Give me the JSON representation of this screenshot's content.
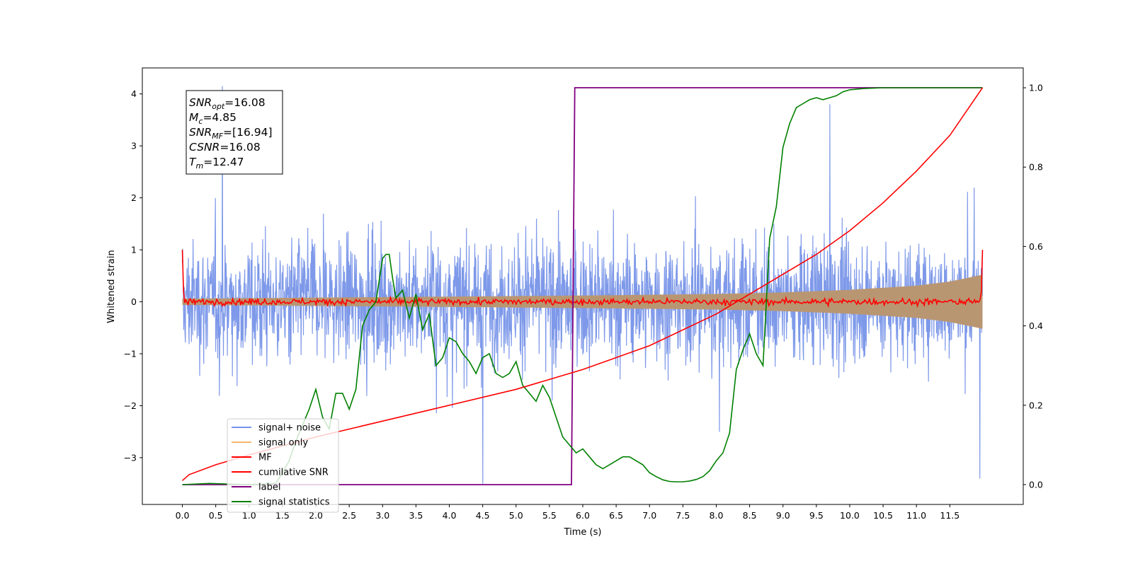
{
  "chart_data": {
    "type": "line",
    "xlabel": "Time (s)",
    "ylabel_left": "Whitened strain",
    "ylabel_right": "",
    "xlim": [
      -0.6,
      12.6
    ],
    "ylim_left": [
      -3.9,
      4.5
    ],
    "ylim_right": [
      -0.05,
      1.05
    ],
    "x_ticks": [
      "0.0",
      "0.5",
      "1.0",
      "1.5",
      "2.0",
      "2.5",
      "3.0",
      "3.5",
      "4.0",
      "4.5",
      "5.0",
      "5.5",
      "6.0",
      "6.5",
      "7.0",
      "7.5",
      "8.0",
      "8.5",
      "9.0",
      "9.5",
      "10.0",
      "10.5",
      "11.0",
      "11.5"
    ],
    "y_ticks_left": [
      "4",
      "3",
      "2",
      "1",
      "0",
      "−1",
      "−2",
      "−3"
    ],
    "y_ticks_right": [
      "1.0",
      "0.8",
      "0.6",
      "0.4",
      "0.2",
      "0.0"
    ],
    "grid": false,
    "legend_position": "lower-left",
    "annotation": [
      {
        "base": "SNR",
        "sub": "opt",
        "value": "=16.08"
      },
      {
        "base": "M",
        "sub": "c",
        "value": "=4.85"
      },
      {
        "base": "SNR",
        "sub": "MF",
        "value": "=[16.94]"
      },
      {
        "base": "CSNR",
        "sub": "",
        "value": "=16.08"
      },
      {
        "base": "T",
        "sub": "m",
        "value": "=12.47"
      }
    ],
    "series": [
      {
        "name": "signal+ noise",
        "axis": "left",
        "color": "#7793e8",
        "kind": "noise",
        "x_range": [
          0.0,
          11.99
        ],
        "typical_amplitude": 1.6,
        "extreme_peaks": [
          [
            0.6,
            4.15
          ],
          [
            4.5,
            -3.5
          ],
          [
            9.7,
            3.8
          ],
          [
            11.95,
            -3.4
          ]
        ]
      },
      {
        "name": "signal only",
        "axis": "left",
        "color": "#f5b870",
        "kind": "envelope",
        "envelope_x": [
          0.0,
          2.0,
          4.0,
          6.0,
          8.0,
          9.0,
          10.0,
          11.0,
          11.5,
          11.99
        ],
        "envelope_y": [
          0.06,
          0.08,
          0.1,
          0.12,
          0.15,
          0.18,
          0.23,
          0.31,
          0.39,
          0.52
        ]
      },
      {
        "name": "MF",
        "axis": "left",
        "color": "#ff0000",
        "kind": "noise",
        "x_range": [
          0.0,
          11.99
        ],
        "typical_amplitude": 0.05,
        "end_values": [
          1.0,
          1.0
        ]
      },
      {
        "name": "cumilative SNR",
        "axis": "right",
        "color": "#ff0000",
        "x": [
          0.0,
          0.1,
          0.5,
          1.0,
          2.0,
          3.0,
          4.0,
          5.0,
          6.0,
          7.0,
          8.0,
          8.5,
          9.0,
          9.5,
          10.0,
          10.5,
          11.0,
          11.5,
          11.99
        ],
        "y": [
          0.01,
          0.025,
          0.05,
          0.075,
          0.12,
          0.16,
          0.2,
          0.24,
          0.29,
          0.35,
          0.43,
          0.48,
          0.53,
          0.58,
          0.64,
          0.71,
          0.79,
          0.88,
          1.0
        ]
      },
      {
        "name": "label",
        "axis": "right",
        "color": "#800080",
        "x": [
          0.0,
          5.83,
          5.88,
          11.99
        ],
        "y": [
          0.0,
          0.0,
          1.0,
          1.0
        ]
      },
      {
        "name": "signal statistics",
        "axis": "right",
        "color": "#008000",
        "x": [
          0.0,
          0.4,
          1.0,
          1.4,
          1.5,
          1.6,
          1.7,
          1.8,
          1.9,
          2.0,
          2.1,
          2.2,
          2.3,
          2.4,
          2.5,
          2.6,
          2.7,
          2.8,
          2.9,
          3.0,
          3.05,
          3.1,
          3.15,
          3.2,
          3.3,
          3.4,
          3.5,
          3.6,
          3.7,
          3.8,
          3.9,
          4.0,
          4.1,
          4.2,
          4.3,
          4.4,
          4.5,
          4.6,
          4.7,
          4.8,
          4.9,
          5.0,
          5.1,
          5.2,
          5.3,
          5.4,
          5.5,
          5.6,
          5.7,
          5.8,
          5.9,
          6.0,
          6.1,
          6.2,
          6.3,
          6.4,
          6.5,
          6.6,
          6.7,
          6.8,
          6.9,
          7.0,
          7.1,
          7.2,
          7.3,
          7.4,
          7.5,
          7.6,
          7.7,
          7.8,
          7.9,
          8.0,
          8.1,
          8.2,
          8.3,
          8.4,
          8.5,
          8.6,
          8.7,
          8.8,
          8.9,
          9.0,
          9.1,
          9.2,
          9.3,
          9.4,
          9.5,
          9.6,
          9.7,
          9.8,
          9.9,
          10.0,
          10.2,
          10.5,
          11.0,
          11.5,
          11.99
        ],
        "y": [
          0.0,
          0.003,
          0.0,
          0.003,
          0.03,
          0.06,
          0.11,
          0.15,
          0.19,
          0.24,
          0.17,
          0.14,
          0.23,
          0.23,
          0.19,
          0.24,
          0.4,
          0.44,
          0.46,
          0.57,
          0.58,
          0.58,
          0.52,
          0.47,
          0.49,
          0.42,
          0.48,
          0.39,
          0.43,
          0.3,
          0.32,
          0.37,
          0.36,
          0.33,
          0.31,
          0.28,
          0.32,
          0.33,
          0.28,
          0.27,
          0.28,
          0.31,
          0.25,
          0.23,
          0.21,
          0.25,
          0.22,
          0.17,
          0.12,
          0.1,
          0.08,
          0.09,
          0.07,
          0.05,
          0.04,
          0.05,
          0.06,
          0.07,
          0.07,
          0.06,
          0.05,
          0.03,
          0.02,
          0.012,
          0.008,
          0.007,
          0.007,
          0.009,
          0.013,
          0.02,
          0.035,
          0.06,
          0.08,
          0.13,
          0.29,
          0.34,
          0.38,
          0.33,
          0.3,
          0.62,
          0.7,
          0.85,
          0.91,
          0.95,
          0.96,
          0.97,
          0.975,
          0.97,
          0.975,
          0.98,
          0.99,
          0.995,
          0.998,
          1.0,
          1.0,
          1.0,
          1.0
        ]
      }
    ]
  }
}
